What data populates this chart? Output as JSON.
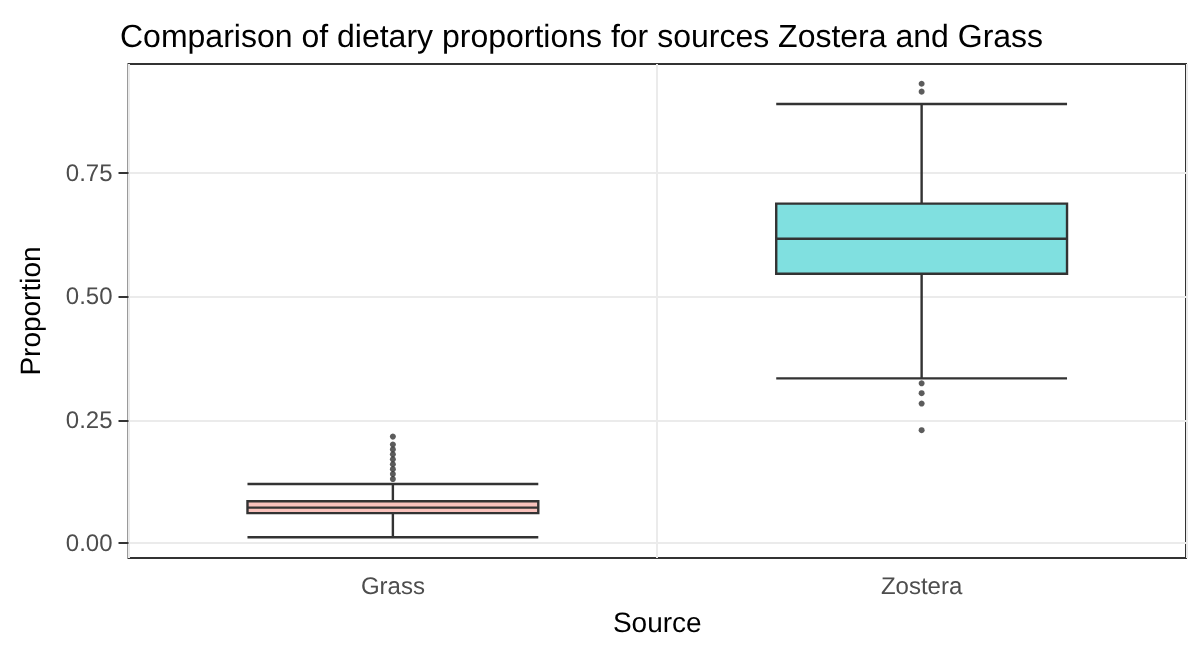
{
  "chart_data": {
    "type": "box",
    "title": "Comparison of dietary proportions for sources Zostera and Grass",
    "xlabel": "Source",
    "ylabel": "Proportion",
    "categories": [
      "Grass",
      "Zostera"
    ],
    "boxes": [
      {
        "low": 0.012,
        "q1": 0.061,
        "median": 0.072,
        "q3": 0.085,
        "high": 0.12,
        "outliers": [
          0.13,
          0.14,
          0.15,
          0.16,
          0.17,
          0.18,
          0.19,
          0.2,
          0.216
        ]
      },
      {
        "low": 0.334,
        "q1": 0.546,
        "median": 0.617,
        "q3": 0.688,
        "high": 0.89,
        "outliers": [
          0.915,
          0.931,
          0.324,
          0.304,
          0.283,
          0.229
        ]
      }
    ],
    "colors": [
      "#f9c2bd",
      "#80e0e0"
    ],
    "ylim": [
      -0.03,
      0.971
    ],
    "yticks": [
      {
        "value": 0,
        "label": "0.00"
      },
      {
        "value": 0.25,
        "label": "0.25"
      },
      {
        "value": 0.5,
        "label": "0.50"
      },
      {
        "value": 0.75,
        "label": "0.75"
      }
    ],
    "grid": true
  }
}
